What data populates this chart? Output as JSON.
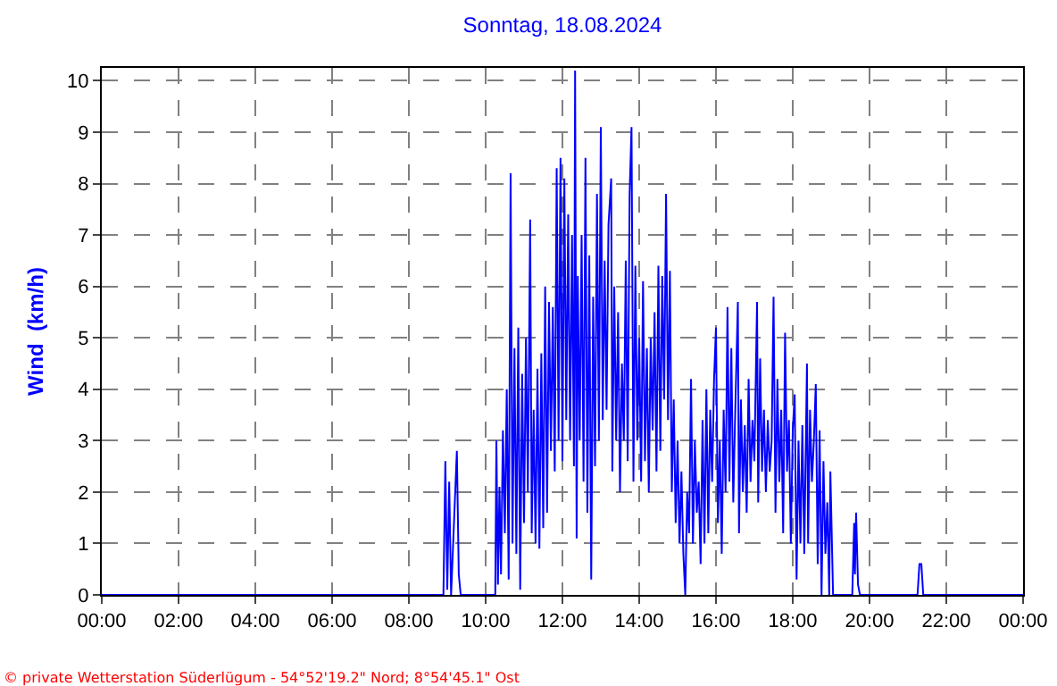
{
  "chart_data": {
    "type": "line",
    "title": "Sonntag, 18.08.2024",
    "ylabel": "Wind  (km/h)",
    "annotations": [
      "© private Wetterstation Süderlügum - 54°52'19.2\" Nord; 8°54'45.1\" Ost"
    ],
    "xlim": [
      0,
      24
    ],
    "xticks": [
      {
        "value": 0,
        "label": "00:00"
      },
      {
        "value": 2,
        "label": "02:00"
      },
      {
        "value": 4,
        "label": "04:00"
      },
      {
        "value": 6,
        "label": "06:00"
      },
      {
        "value": 8,
        "label": "08:00"
      },
      {
        "value": 10,
        "label": "10:00"
      },
      {
        "value": 12,
        "label": "12:00"
      },
      {
        "value": 14,
        "label": "14:00"
      },
      {
        "value": 16,
        "label": "16:00"
      },
      {
        "value": 18,
        "label": "18:00"
      },
      {
        "value": 20,
        "label": "20:00"
      },
      {
        "value": 22,
        "label": "22:00"
      },
      {
        "value": 24,
        "label": "00:00"
      }
    ],
    "ylim": [
      0,
      10.25
    ],
    "yticks": [
      0,
      1,
      2,
      3,
      4,
      5,
      6,
      7,
      8,
      9,
      10
    ],
    "grid": true,
    "marker": "none",
    "line_style": "solid",
    "series": [
      {
        "color": "#0000ff",
        "x": [
          0,
          8.9,
          8.95,
          9.0,
          9.05,
          9.1,
          9.25,
          9.3,
          9.35,
          10.25,
          10.28,
          10.32,
          10.36,
          10.4,
          10.45,
          10.5,
          10.55,
          10.6,
          10.65,
          10.7,
          10.75,
          10.8,
          10.85,
          10.9,
          10.95,
          11.0,
          11.05,
          11.1,
          11.16,
          11.2,
          11.25,
          11.3,
          11.35,
          11.4,
          11.45,
          11.5,
          11.55,
          11.6,
          11.65,
          11.7,
          11.75,
          11.8,
          11.85,
          11.9,
          11.95,
          12.0,
          12.05,
          12.1,
          12.15,
          12.2,
          12.25,
          12.3,
          12.33,
          12.37,
          12.4,
          12.45,
          12.5,
          12.55,
          12.6,
          12.65,
          12.7,
          12.75,
          12.8,
          12.85,
          12.9,
          12.95,
          13.0,
          13.05,
          13.1,
          13.15,
          13.2,
          13.27,
          13.3,
          13.35,
          13.4,
          13.45,
          13.5,
          13.55,
          13.6,
          13.65,
          13.7,
          13.75,
          13.8,
          13.85,
          13.9,
          13.95,
          14.0,
          14.05,
          14.1,
          14.15,
          14.2,
          14.25,
          14.3,
          14.35,
          14.4,
          14.45,
          14.5,
          14.55,
          14.6,
          14.65,
          14.7,
          14.75,
          14.8,
          14.85,
          14.9,
          14.95,
          15.0,
          15.05,
          15.1,
          15.15,
          15.2,
          15.25,
          15.3,
          15.35,
          15.4,
          15.45,
          15.5,
          15.55,
          15.6,
          15.65,
          15.7,
          15.75,
          15.8,
          15.85,
          15.9,
          15.95,
          16.0,
          16.05,
          16.1,
          16.15,
          16.2,
          16.25,
          16.3,
          16.35,
          16.4,
          16.45,
          16.5,
          16.57,
          16.6,
          16.65,
          16.7,
          16.75,
          16.8,
          16.85,
          16.9,
          16.95,
          17.0,
          17.07,
          17.1,
          17.15,
          17.2,
          17.25,
          17.3,
          17.35,
          17.4,
          17.45,
          17.5,
          17.55,
          17.6,
          17.65,
          17.7,
          17.75,
          17.8,
          17.85,
          17.9,
          17.95,
          18.0,
          18.05,
          18.1,
          18.15,
          18.2,
          18.25,
          18.3,
          18.37,
          18.4,
          18.45,
          18.5,
          18.55,
          18.6,
          18.65,
          18.7,
          18.75,
          18.8,
          18.85,
          18.9,
          18.95,
          18.98,
          19.05,
          19.55,
          19.6,
          19.62,
          19.65,
          19.7,
          19.75,
          21.25,
          21.3,
          21.35,
          21.4,
          24
        ],
        "values": [
          0,
          0,
          2.6,
          0.1,
          2.2,
          0,
          2.8,
          0.4,
          0,
          0,
          3.0,
          0.2,
          2.1,
          0.4,
          3.2,
          1.2,
          4.0,
          0.3,
          8.2,
          1.0,
          4.8,
          0.8,
          5.2,
          0.1,
          4.3,
          1.4,
          5.0,
          2.0,
          7.3,
          1.2,
          3.6,
          1.0,
          4.4,
          0.9,
          4.7,
          1.3,
          6.0,
          1.6,
          5.7,
          2.8,
          5.6,
          2.4,
          8.3,
          3.0,
          8.5,
          2.6,
          8.1,
          3.4,
          7.4,
          3.0,
          7.0,
          2.5,
          10.2,
          1.1,
          6.2,
          3.0,
          7.0,
          2.2,
          8.5,
          1.6,
          6.6,
          0.3,
          5.8,
          2.5,
          7.8,
          3.0,
          9.1,
          3.4,
          6.5,
          3.6,
          7.2,
          8.1,
          2.4,
          6.0,
          3.0,
          5.5,
          2.0,
          4.5,
          3.0,
          6.5,
          2.6,
          7.8,
          9.1,
          2.2,
          6.4,
          3.0,
          5.0,
          2.2,
          6.1,
          2.6,
          4.8,
          2.0,
          5.0,
          3.2,
          5.5,
          2.4,
          6.4,
          2.8,
          6.2,
          3.8,
          7.8,
          3.4,
          6.3,
          2.0,
          3.8,
          1.4,
          3.0,
          1.0,
          2.4,
          0.8,
          0,
          2.0,
          1.2,
          4.2,
          1.0,
          3.0,
          1.6,
          2.2,
          0.6,
          3.4,
          1.0,
          4.0,
          1.2,
          3.6,
          2.2,
          4.2,
          5.2,
          1.4,
          3.0,
          0.8,
          3.6,
          2.0,
          5.6,
          2.2,
          4.8,
          1.8,
          3.5,
          5.7,
          1.2,
          3.8,
          2.0,
          3.3,
          1.6,
          4.2,
          2.2,
          3.4,
          2.6,
          5.7,
          1.8,
          4.6,
          2.4,
          3.6,
          2.0,
          3.4,
          2.4,
          3.0,
          5.8,
          1.6,
          4.2,
          2.2,
          3.6,
          1.2,
          5.1,
          2.4,
          3.4,
          1.0,
          3.2,
          3.9,
          0.3,
          3.0,
          1.0,
          3.3,
          0.8,
          4.5,
          1.0,
          3.6,
          2.2,
          3.0,
          4.1,
          0.6,
          3.2,
          0,
          2.6,
          0.8,
          1.8,
          0,
          2.4,
          0,
          0,
          1.4,
          0.4,
          1.6,
          0.2,
          0,
          0,
          0.6,
          0.6,
          0,
          0
        ]
      }
    ]
  }
}
